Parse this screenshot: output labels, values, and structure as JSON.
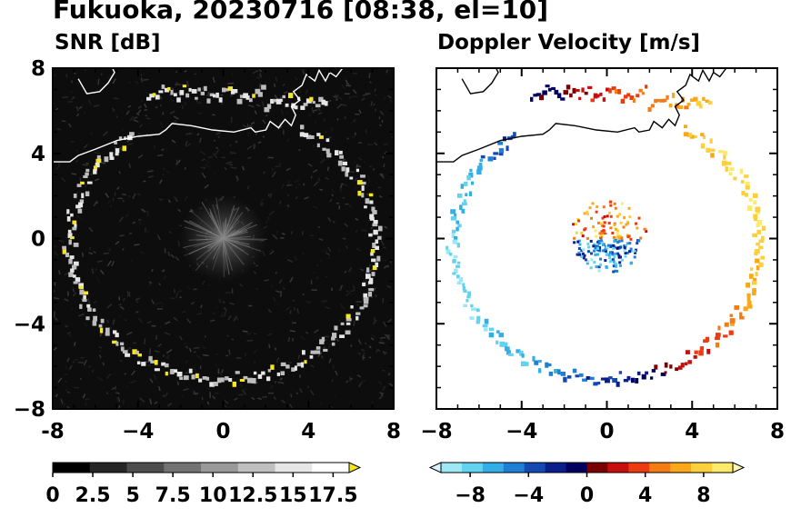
{
  "header": {
    "title": "Fukuoka, 20230716 [08:38, el=10]"
  },
  "panels": [
    {
      "title": "SNR [dB]"
    },
    {
      "title": "Doppler Velocity [m/s]"
    }
  ],
  "colors": {
    "snr_background": "#0d0d0d",
    "snr_ring": "#dcdcdc",
    "snr_peak": "#f5e61e",
    "coastline_on_dark": "#ffffff",
    "coastline_on_light": "#000000"
  },
  "chart_data": [
    {
      "type": "heatmap",
      "panel": "snr",
      "title": "SNR [dB]",
      "xlim": [
        -8,
        8
      ],
      "ylim": [
        -8,
        8
      ],
      "xticks": [
        "-8",
        "−4",
        "0",
        "4",
        "8"
      ],
      "yticks": [
        "8",
        "4",
        "0",
        "−4",
        "−8"
      ],
      "colorbar": {
        "range": [
          0,
          18.5
        ],
        "extend": "max",
        "ticks": [
          "0",
          "2.5",
          "5",
          "7.5",
          "10",
          "12.5",
          "15",
          "17.5"
        ],
        "tick_values": [
          0,
          2.5,
          5,
          7.5,
          10,
          12.5,
          15,
          17.5
        ],
        "colors": [
          "#000000",
          "#262626",
          "#4d4d4d",
          "#737373",
          "#999999",
          "#bfbfbf",
          "#e6e6e6",
          "#ffffff",
          "#f5e61e"
        ]
      }
    },
    {
      "type": "heatmap",
      "panel": "doppler",
      "title": "Doppler Velocity [m/s]",
      "xlim": [
        -8,
        8
      ],
      "ylim": [
        -8,
        8
      ],
      "xticks": [
        "−8",
        "−4",
        "0",
        "4",
        "8"
      ],
      "yticks": [],
      "colorbar": {
        "range": [
          -10,
          10
        ],
        "extend": "both",
        "ticks": [
          "−8",
          "−4",
          "0",
          "4",
          "8"
        ],
        "tick_values": [
          -8,
          -4,
          0,
          4,
          8
        ],
        "colors": [
          "#d8f6fb",
          "#9de8f4",
          "#5fd3ef",
          "#33aee6",
          "#1f7fd6",
          "#1249b3",
          "#0b1f8c",
          "#000060",
          "#7a0000",
          "#c80d0d",
          "#ee3a10",
          "#f57c14",
          "#f8a818",
          "#fbd03c",
          "#fde96a",
          "#fff6b0"
        ]
      }
    }
  ]
}
